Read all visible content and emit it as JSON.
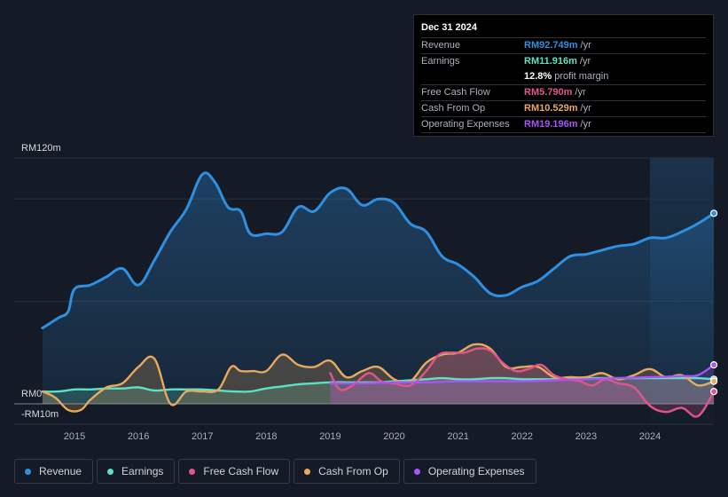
{
  "tooltip": {
    "date": "Dec 31 2024",
    "rows": [
      {
        "label": "Revenue",
        "value": "RM92.749m",
        "unit": "/yr",
        "color": "#2f8fe0"
      },
      {
        "label": "Earnings",
        "value": "RM11.916m",
        "unit": "/yr",
        "color": "#5fe0c3"
      },
      {
        "label": "",
        "value": "12.8%",
        "unit": "profit margin",
        "color": "#ffffff"
      },
      {
        "label": "Free Cash Flow",
        "value": "RM5.790m",
        "unit": "/yr",
        "color": "#e0558c"
      },
      {
        "label": "Cash From Op",
        "value": "RM10.529m",
        "unit": "/yr",
        "color": "#e9a85c"
      },
      {
        "label": "Operating Expenses",
        "value": "RM19.196m",
        "unit": "/yr",
        "color": "#a855f7"
      }
    ]
  },
  "legend": [
    {
      "label": "Revenue",
      "color": "#2f8fe0"
    },
    {
      "label": "Earnings",
      "color": "#5fe0c3"
    },
    {
      "label": "Free Cash Flow",
      "color": "#e0558c"
    },
    {
      "label": "Cash From Op",
      "color": "#e9a85c"
    },
    {
      "label": "Operating Expenses",
      "color": "#a855f7"
    }
  ],
  "chart_data": {
    "type": "area",
    "title": "",
    "xlabel": "",
    "ylabel": "",
    "y_tick_labels": [
      "RM120m",
      "RM0",
      "-RM10m"
    ],
    "ylim": [
      -10,
      120
    ],
    "xlim": [
      2014.25,
      2025.0
    ],
    "x_ticks": [
      2015,
      2016,
      2017,
      2018,
      2019,
      2020,
      2021,
      2022,
      2023,
      2024
    ],
    "x_tick_labels": [
      "2015",
      "2016",
      "2017",
      "2018",
      "2019",
      "2020",
      "2021",
      "2022",
      "2023",
      "2024"
    ],
    "forecast_start": 2024.0,
    "series": [
      {
        "name": "Revenue",
        "color": "#2f8fe0",
        "x": [
          2014.5,
          2014.75,
          2014.9,
          2015.0,
          2015.25,
          2015.5,
          2015.75,
          2016.0,
          2016.25,
          2016.5,
          2016.75,
          2017.0,
          2017.2,
          2017.4,
          2017.6,
          2017.75,
          2018.0,
          2018.25,
          2018.5,
          2018.75,
          2019.0,
          2019.25,
          2019.5,
          2019.75,
          2020.0,
          2020.25,
          2020.5,
          2020.75,
          2021.0,
          2021.25,
          2021.5,
          2021.75,
          2022.0,
          2022.25,
          2022.5,
          2022.75,
          2023.0,
          2023.25,
          2023.5,
          2023.75,
          2024.0,
          2024.25,
          2024.5,
          2024.75,
          2025.0
        ],
        "values": [
          37,
          42,
          45,
          56,
          58,
          62,
          66,
          58,
          70,
          84,
          95,
          112,
          108,
          96,
          94,
          83,
          83,
          84,
          96,
          94,
          103,
          105,
          97,
          100,
          98,
          88,
          84,
          72,
          68,
          62,
          54,
          53,
          57,
          60,
          66,
          72,
          73,
          75,
          77,
          78,
          81,
          81,
          84,
          88,
          93
        ]
      },
      {
        "name": "Earnings",
        "color": "#5fe0c3",
        "x": [
          2014.5,
          2014.75,
          2015.0,
          2015.25,
          2015.5,
          2015.75,
          2016.0,
          2016.25,
          2016.5,
          2016.75,
          2017.0,
          2017.25,
          2017.5,
          2017.75,
          2018.0,
          2018.25,
          2018.5,
          2018.75,
          2019.0,
          2019.25,
          2019.5,
          2019.75,
          2020.0,
          2020.25,
          2020.5,
          2020.75,
          2021.0,
          2021.25,
          2021.5,
          2021.75,
          2022.0,
          2022.25,
          2022.5,
          2022.75,
          2023.0,
          2023.25,
          2023.5,
          2023.75,
          2024.0,
          2024.25,
          2024.5,
          2024.75,
          2025.0
        ],
        "values": [
          6,
          6,
          7,
          7,
          7.5,
          7.5,
          8,
          6.5,
          7,
          7,
          7,
          6.5,
          6,
          6,
          7.5,
          8.5,
          9.5,
          10,
          10.5,
          10.5,
          10.5,
          10.5,
          11,
          11.5,
          12,
          12.5,
          12,
          12,
          12.5,
          12.5,
          12,
          12,
          12,
          12.5,
          12.5,
          12.5,
          12.5,
          12.5,
          12.5,
          12.5,
          12.5,
          12.5,
          12
        ]
      },
      {
        "name": "Free Cash Flow",
        "color": "#e0558c",
        "x": [
          2019.0,
          2019.15,
          2019.35,
          2019.6,
          2019.8,
          2020.0,
          2020.25,
          2020.5,
          2020.7,
          2020.9,
          2021.1,
          2021.3,
          2021.5,
          2021.7,
          2021.9,
          2022.1,
          2022.3,
          2022.5,
          2022.7,
          2022.9,
          2023.1,
          2023.3,
          2023.5,
          2023.75,
          2024.0,
          2024.25,
          2024.5,
          2024.75,
          2025.0
        ],
        "values": [
          15,
          7,
          9,
          15,
          11,
          10,
          9,
          16,
          24,
          25,
          25,
          27,
          26,
          20,
          16,
          17,
          19,
          14,
          12,
          11,
          9,
          12,
          10,
          8,
          -1,
          -4,
          -2,
          -6,
          6
        ]
      },
      {
        "name": "Cash From Op",
        "color": "#e9a85c",
        "x": [
          2014.5,
          2014.7,
          2014.9,
          2015.1,
          2015.25,
          2015.5,
          2015.75,
          2016.0,
          2016.25,
          2016.5,
          2016.75,
          2017.0,
          2017.25,
          2017.45,
          2017.6,
          2017.8,
          2018.0,
          2018.25,
          2018.5,
          2018.75,
          2019.0,
          2019.25,
          2019.5,
          2019.75,
          2020.0,
          2020.25,
          2020.5,
          2020.75,
          2021.0,
          2021.25,
          2021.5,
          2021.75,
          2022.0,
          2022.25,
          2022.5,
          2022.75,
          2023.0,
          2023.25,
          2023.5,
          2023.75,
          2024.0,
          2024.25,
          2024.5,
          2024.75,
          2025.0
        ],
        "values": [
          6,
          3,
          -3,
          -3,
          2,
          8,
          10,
          18,
          22,
          0,
          6,
          6,
          7,
          18,
          16,
          16,
          16,
          24,
          19,
          18,
          21,
          13,
          16,
          18,
          12,
          11,
          20,
          24,
          25,
          29,
          27,
          18,
          18,
          18,
          13,
          13,
          13,
          15,
          12,
          14,
          17,
          13,
          14,
          9,
          11
        ]
      },
      {
        "name": "Operating Expenses",
        "color": "#a855f7",
        "x": [
          2019.0,
          2019.5,
          2020.0,
          2020.5,
          2021.0,
          2021.5,
          2022.0,
          2022.5,
          2023.0,
          2023.5,
          2024.0,
          2024.5,
          2024.75,
          2025.0
        ],
        "values": [
          10,
          10,
          10.5,
          10.5,
          11,
          11,
          11,
          11.5,
          12,
          12.5,
          13,
          13.5,
          14,
          19
        ]
      }
    ]
  }
}
